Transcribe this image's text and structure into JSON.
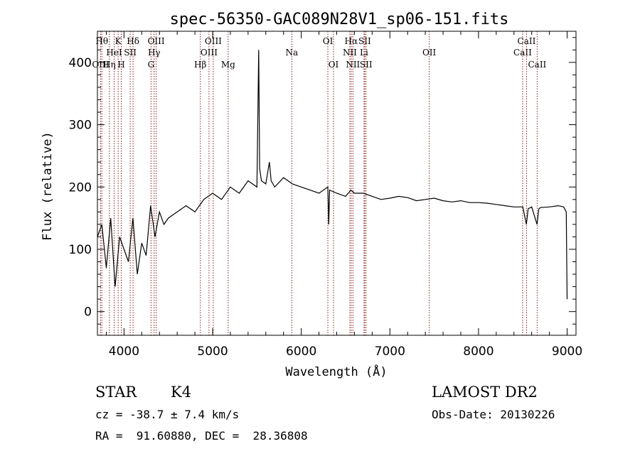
{
  "chart_data": {
    "type": "line",
    "title": "spec-56350-GAC089N28V1_sp06-151.fits",
    "xlabel": "Wavelength (Å)",
    "ylabel": "Flux (relative)",
    "xlim": [
      3700,
      9100
    ],
    "ylim": [
      -38,
      450
    ],
    "xticks": [
      4000,
      5000,
      6000,
      7000,
      8000,
      9000
    ],
    "yticks": [
      0,
      100,
      200,
      300,
      400
    ],
    "grid": false,
    "series": [
      {
        "x": [
          3700,
          3750,
          3800,
          3850,
          3900,
          3950,
          4000,
          4050,
          4100,
          4150,
          4200,
          4250,
          4300,
          4350,
          4400,
          4450,
          4500,
          4600,
          4700,
          4800,
          4900,
          5000,
          5100,
          5200,
          5300,
          5400,
          5500,
          5520,
          5530,
          5550,
          5600,
          5640,
          5660,
          5700,
          5800,
          5900,
          6000,
          6100,
          6200,
          6300,
          6310,
          6320,
          6400,
          6500,
          6560,
          6600,
          6700,
          6800,
          6900,
          7000,
          7100,
          7200,
          7300,
          7400,
          7500,
          7600,
          7700,
          7800,
          7900,
          8000,
          8100,
          8200,
          8300,
          8400,
          8500,
          8540,
          8560,
          8600,
          8660,
          8680,
          8700,
          8800,
          8900,
          8960,
          8990,
          9000
        ],
        "y": [
          120,
          140,
          70,
          150,
          40,
          120,
          100,
          80,
          150,
          60,
          110,
          90,
          170,
          120,
          160,
          140,
          150,
          160,
          170,
          160,
          180,
          190,
          180,
          200,
          190,
          210,
          200,
          420,
          230,
          210,
          205,
          240,
          210,
          200,
          215,
          205,
          200,
          195,
          190,
          200,
          140,
          195,
          190,
          185,
          195,
          190,
          190,
          185,
          180,
          182,
          185,
          183,
          178,
          180,
          182,
          178,
          176,
          178,
          175,
          175,
          174,
          172,
          170,
          168,
          168,
          140,
          165,
          168,
          140,
          165,
          167,
          168,
          170,
          168,
          160,
          20
        ],
        "color": "#000000"
      }
    ],
    "lines": [
      {
        "x": 3735,
        "label": "OIII",
        "row": 3,
        "color": "#8b1a1a"
      },
      {
        "x": 3750,
        "label": "Hθ",
        "row": 1,
        "color": "#8b1a1a"
      },
      {
        "x": 3835,
        "label": "Hη",
        "row": 3,
        "color": "#8b1a1a"
      },
      {
        "x": 3889,
        "label": "HeI",
        "row": 2,
        "color": "#8b1a1a"
      },
      {
        "x": 3934,
        "label": "K",
        "row": 1,
        "color": "#8b1a1a"
      },
      {
        "x": 3969,
        "label": "H",
        "row": 3,
        "color": "#8b1a1a"
      },
      {
        "x": 4070,
        "label": "SII",
        "row": 2,
        "color": "#8b1a1a"
      },
      {
        "x": 4102,
        "label": "Hδ",
        "row": 1,
        "color": "#8b1a1a"
      },
      {
        "x": 4305,
        "label": "G",
        "row": 3,
        "color": "#8b1a1a"
      },
      {
        "x": 4340,
        "label": "Hγ",
        "row": 2,
        "color": "#8b1a1a"
      },
      {
        "x": 4363,
        "label": "OIII",
        "row": 1,
        "color": "#8b1a1a"
      },
      {
        "x": 4861,
        "label": "Hβ",
        "row": 3,
        "color": "#8b1a1a"
      },
      {
        "x": 4959,
        "label": "OIII",
        "row": 2,
        "color": "#8b1a1a"
      },
      {
        "x": 5007,
        "label": "OIII",
        "row": 1,
        "color": "#8b1a1a"
      },
      {
        "x": 5175,
        "label": "Mg",
        "row": 3,
        "color": "#8b1a1a"
      },
      {
        "x": 5893,
        "label": "Na",
        "row": 2,
        "color": "#8b1a1a"
      },
      {
        "x": 6300,
        "label": "OI",
        "row": 1,
        "color": "#8b1a1a"
      },
      {
        "x": 6364,
        "label": "OI",
        "row": 3,
        "color": "#8b1a1a"
      },
      {
        "x": 6548,
        "label": "NII",
        "row": 2,
        "color": "#8b1a1a"
      },
      {
        "x": 6563,
        "label": "Hα",
        "row": 1,
        "color": "#8b1a1a"
      },
      {
        "x": 6583,
        "label": "NII",
        "row": 3,
        "color": "#8b1a1a"
      },
      {
        "x": 6708,
        "label": "Li",
        "row": 2,
        "color": "#8b1a1a"
      },
      {
        "x": 6716,
        "label": "SII",
        "row": 1,
        "color": "#8b1a1a"
      },
      {
        "x": 6731,
        "label": "SII",
        "row": 3,
        "color": "#8b1a1a"
      },
      {
        "x": 7444,
        "label": "OII",
        "row": 2,
        "color": "#8b1a1a"
      },
      {
        "x": 8498,
        "label": "CaII",
        "row": 2,
        "color": "#8b1a1a"
      },
      {
        "x": 8542,
        "label": "CaII",
        "row": 1,
        "color": "#8b1a1a"
      },
      {
        "x": 8662,
        "label": "CaII",
        "row": 3,
        "color": "#8b1a1a"
      }
    ]
  },
  "info": {
    "class_label": "STAR",
    "subclass_label": "K4",
    "cz": "cz = -38.7 ± 7.4 km/s",
    "radec": "RA =  91.60880, DEC =  28.36808",
    "survey": "LAMOST DR2",
    "obs_date": "Obs-Date: 20130226"
  }
}
